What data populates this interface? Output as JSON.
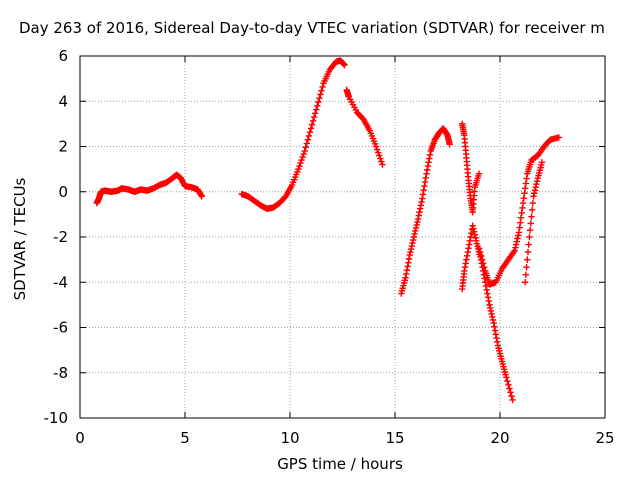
{
  "chart_data": {
    "type": "scatter",
    "title": "Day 263 of 2016, Sidereal Day-to-day VTEC variation (SDTVAR) for receiver m",
    "xlabel": "GPS time / hours",
    "ylabel": "SDTVAR / TECUs",
    "xlim": [
      0,
      25
    ],
    "ylim": [
      -10,
      6
    ],
    "xticks": [
      0,
      5,
      10,
      15,
      20,
      25
    ],
    "yticks": [
      -10,
      -8,
      -6,
      -4,
      -2,
      0,
      2,
      4,
      6
    ],
    "grid": true,
    "marker": "+",
    "color": "#ff0000",
    "series": [
      {
        "points": [
          [
            0.8,
            -0.5
          ],
          [
            0.9,
            -0.3
          ],
          [
            1.0,
            0.0
          ],
          [
            1.2,
            0.05
          ],
          [
            1.5,
            0.0
          ],
          [
            1.8,
            0.05
          ],
          [
            2.0,
            0.15
          ],
          [
            2.3,
            0.1
          ],
          [
            2.6,
            0.0
          ],
          [
            2.9,
            0.1
          ],
          [
            3.2,
            0.05
          ],
          [
            3.5,
            0.15
          ],
          [
            3.8,
            0.3
          ],
          [
            4.1,
            0.4
          ],
          [
            4.4,
            0.6
          ],
          [
            4.6,
            0.75
          ],
          [
            4.8,
            0.6
          ],
          [
            5.0,
            0.25
          ],
          [
            5.3,
            0.2
          ],
          [
            5.6,
            0.1
          ],
          [
            5.8,
            -0.2
          ]
        ]
      },
      {
        "points": [
          [
            7.7,
            -0.1
          ],
          [
            8.0,
            -0.2
          ],
          [
            8.3,
            -0.4
          ],
          [
            8.6,
            -0.6
          ],
          [
            8.9,
            -0.75
          ],
          [
            9.2,
            -0.7
          ],
          [
            9.5,
            -0.5
          ],
          [
            9.8,
            -0.2
          ],
          [
            10.1,
            0.3
          ],
          [
            10.4,
            1.0
          ],
          [
            10.7,
            1.8
          ],
          [
            11.0,
            2.8
          ],
          [
            11.3,
            3.8
          ],
          [
            11.6,
            4.8
          ],
          [
            11.9,
            5.4
          ],
          [
            12.2,
            5.75
          ],
          [
            12.4,
            5.8
          ],
          [
            12.6,
            5.6
          ]
        ]
      },
      {
        "points": [
          [
            12.7,
            4.5
          ],
          [
            12.8,
            4.2
          ],
          [
            13.2,
            3.5
          ],
          [
            13.5,
            3.2
          ],
          [
            13.8,
            2.7
          ],
          [
            14.1,
            2.0
          ],
          [
            14.4,
            1.2
          ]
        ]
      },
      {
        "points": [
          [
            15.3,
            -4.5
          ],
          [
            15.5,
            -3.8
          ],
          [
            15.7,
            -2.8
          ],
          [
            15.9,
            -2.0
          ],
          [
            16.1,
            -1.2
          ],
          [
            16.3,
            -0.3
          ],
          [
            16.5,
            0.8
          ],
          [
            16.7,
            1.8
          ],
          [
            16.9,
            2.3
          ],
          [
            17.1,
            2.6
          ],
          [
            17.3,
            2.8
          ],
          [
            17.5,
            2.5
          ],
          [
            17.6,
            2.1
          ]
        ]
      },
      {
        "points": [
          [
            18.2,
            3.0
          ],
          [
            18.3,
            2.5
          ],
          [
            18.4,
            1.5
          ],
          [
            18.5,
            0.5
          ],
          [
            18.6,
            -0.3
          ],
          [
            18.7,
            -0.9
          ],
          [
            18.8,
            0.2
          ],
          [
            19.0,
            0.8
          ]
        ]
      },
      {
        "points": [
          [
            18.2,
            -4.3
          ],
          [
            18.3,
            -3.5
          ],
          [
            18.5,
            -2.5
          ],
          [
            18.7,
            -1.5
          ],
          [
            18.9,
            -2.3
          ],
          [
            19.1,
            -3.0
          ],
          [
            19.3,
            -4.0
          ],
          [
            19.5,
            -5.0
          ],
          [
            19.7,
            -5.8
          ],
          [
            19.9,
            -6.8
          ],
          [
            20.1,
            -7.5
          ],
          [
            20.3,
            -8.2
          ],
          [
            20.6,
            -9.2
          ]
        ]
      },
      {
        "points": [
          [
            19.0,
            -2.5
          ],
          [
            19.3,
            -3.5
          ],
          [
            19.5,
            -4.1
          ],
          [
            19.8,
            -4.0
          ],
          [
            20.1,
            -3.4
          ],
          [
            20.4,
            -3.0
          ],
          [
            20.7,
            -2.6
          ],
          [
            20.9,
            -1.8
          ],
          [
            21.1,
            -0.5
          ],
          [
            21.3,
            0.8
          ],
          [
            21.5,
            1.4
          ],
          [
            21.8,
            1.6
          ],
          [
            22.1,
            2.0
          ],
          [
            22.4,
            2.3
          ],
          [
            22.8,
            2.4
          ]
        ]
      },
      {
        "points": [
          [
            21.2,
            -4.0
          ],
          [
            21.4,
            -2.0
          ],
          [
            21.6,
            -0.2
          ],
          [
            21.8,
            0.6
          ],
          [
            22.0,
            1.3
          ]
        ]
      }
    ]
  }
}
